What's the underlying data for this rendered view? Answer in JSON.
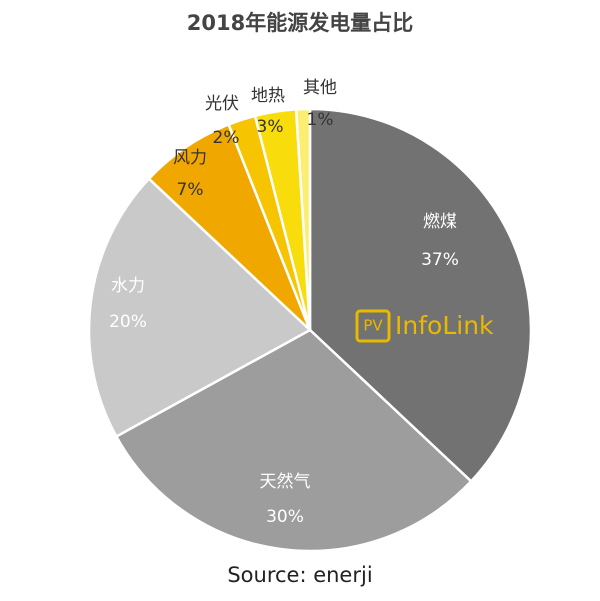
{
  "chart_data": {
    "type": "pie",
    "title": "2018年能源发电量占比",
    "categories": [
      "燃煤",
      "天然气",
      "水力",
      "风力",
      "光伏",
      "地热",
      "其他"
    ],
    "values": [
      37,
      30,
      20,
      7,
      2,
      3,
      1
    ],
    "value_labels": [
      "37%",
      "30%",
      "20%",
      "7%",
      "2%",
      "3%",
      "1%"
    ],
    "colors": [
      "#727272",
      "#9d9d9d",
      "#c9c9c9",
      "#f0a800",
      "#f6c400",
      "#f9dc0c",
      "#fbee70"
    ],
    "source": "Source: enerji",
    "watermark": {
      "badge": "PV",
      "text": "InfoLink"
    }
  }
}
